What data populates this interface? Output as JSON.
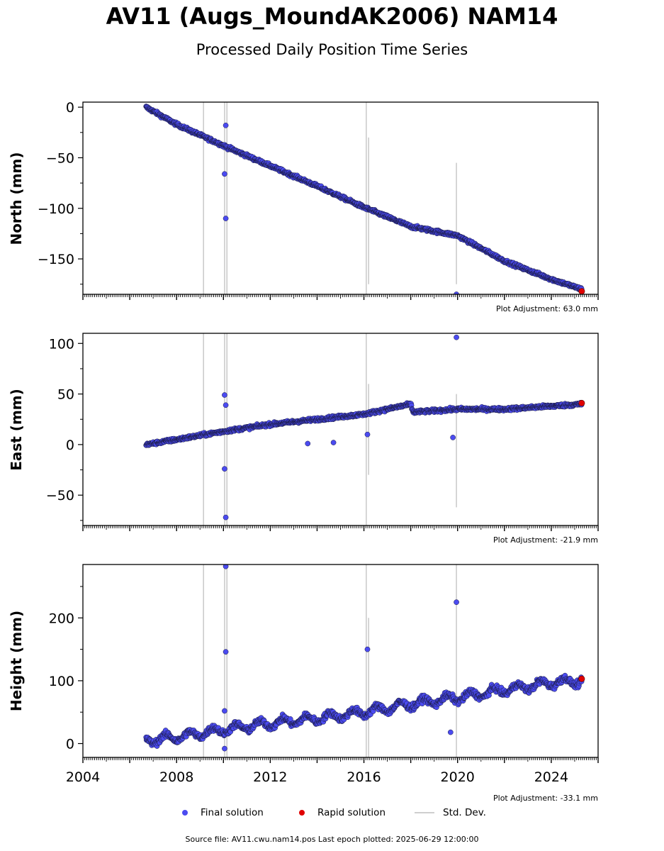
{
  "header": {
    "title": "AV11 (Augs_MoundAK2006) NAM14",
    "subtitle": "Processed Daily Position Time Series"
  },
  "colors": {
    "final": "#4b4bf0",
    "rapid": "#e00000",
    "stddev": "#c8c8c8",
    "outline": "#1a1a40"
  },
  "chart_data": [
    {
      "type": "scatter",
      "ylabel": "North (mm)",
      "ylim": [
        -185,
        5
      ],
      "xlim": [
        2004,
        2026
      ],
      "yticks": [
        0,
        -50,
        -100,
        -150
      ],
      "ytick_labels": [
        "0",
        "−50",
        "−100",
        "−150"
      ],
      "adjustment": "Plot Adjustment: 63.0 mm",
      "final_trend": {
        "x": [
          2006.7,
          2008,
          2010,
          2012,
          2014,
          2016,
          2018,
          2020,
          2022,
          2024,
          2025.3
        ],
        "y": [
          0,
          -17,
          -38,
          -58,
          -78,
          -99,
          -118,
          -127,
          -152,
          -170,
          -180
        ]
      },
      "outliers": [
        {
          "x": 2010.1,
          "y": -18
        },
        {
          "x": 2010.05,
          "y": -66
        },
        {
          "x": 2010.1,
          "y": -110
        },
        {
          "x": 2019.95,
          "y": -185
        }
      ],
      "rapid": [
        {
          "x": 2025.3,
          "y": -182
        }
      ],
      "stddev_spikes": [
        {
          "x": 2009.15,
          "y1": -185,
          "y2": 5
        },
        {
          "x": 2010.05,
          "y1": -185,
          "y2": 5
        },
        {
          "x": 2010.15,
          "y1": -185,
          "y2": 5
        },
        {
          "x": 2016.1,
          "y1": -185,
          "y2": 5
        },
        {
          "x": 2016.2,
          "y1": -175,
          "y2": -30
        },
        {
          "x": 2019.95,
          "y1": -175,
          "y2": -55
        }
      ]
    },
    {
      "type": "scatter",
      "ylabel": "East (mm)",
      "ylim": [
        -80,
        110
      ],
      "xlim": [
        2004,
        2026
      ],
      "yticks": [
        100,
        50,
        0,
        -50
      ],
      "ytick_labels": [
        "100",
        "50",
        "0",
        "−50"
      ],
      "adjustment": "Plot Adjustment: -21.9 mm",
      "final_trend": {
        "x": [
          2006.7,
          2008,
          2010,
          2012,
          2014,
          2016,
          2018,
          2018.1,
          2020,
          2022,
          2024,
          2025.3
        ],
        "y": [
          0,
          5,
          13,
          20,
          25,
          30,
          40,
          32,
          35,
          35,
          38,
          40
        ]
      },
      "outliers": [
        {
          "x": 2010.05,
          "y": 49
        },
        {
          "x": 2010.1,
          "y": 39
        },
        {
          "x": 2010.05,
          "y": -24
        },
        {
          "x": 2010.1,
          "y": -72
        },
        {
          "x": 2013.6,
          "y": 1
        },
        {
          "x": 2014.7,
          "y": 2
        },
        {
          "x": 2016.15,
          "y": 10
        },
        {
          "x": 2019.8,
          "y": 7
        },
        {
          "x": 2019.95,
          "y": 106
        }
      ],
      "rapid": [
        {
          "x": 2025.3,
          "y": 41
        }
      ],
      "stddev_spikes": [
        {
          "x": 2009.15,
          "y1": -80,
          "y2": 110
        },
        {
          "x": 2010.05,
          "y1": -80,
          "y2": 110
        },
        {
          "x": 2010.15,
          "y1": -80,
          "y2": 110
        },
        {
          "x": 2016.1,
          "y1": -80,
          "y2": 110
        },
        {
          "x": 2016.2,
          "y1": -30,
          "y2": 60
        },
        {
          "x": 2019.95,
          "y1": -62,
          "y2": 50
        }
      ]
    },
    {
      "type": "scatter",
      "ylabel": "Height (mm)",
      "ylim": [
        -22,
        285
      ],
      "xlim": [
        2004,
        2026
      ],
      "yticks": [
        200,
        100,
        0
      ],
      "ytick_labels": [
        "200",
        "100",
        "0"
      ],
      "xticks": [
        2004,
        2008,
        2012,
        2016,
        2020,
        2024
      ],
      "xtick_labels": [
        "2004",
        "2008",
        "2012",
        "2016",
        "2020",
        "2024"
      ],
      "adjustment": "Plot Adjustment: -33.1 mm",
      "final_trend": {
        "x": [
          2006.7,
          2008,
          2010,
          2012,
          2014,
          2016,
          2018,
          2020,
          2022,
          2024,
          2025.3
        ],
        "y": [
          5,
          10,
          22,
          32,
          40,
          50,
          63,
          73,
          85,
          97,
          100
        ]
      },
      "outliers": [
        {
          "x": 2010.1,
          "y": 282
        },
        {
          "x": 2010.1,
          "y": 146
        },
        {
          "x": 2010.05,
          "y": 52
        },
        {
          "x": 2010.05,
          "y": -8
        },
        {
          "x": 2016.15,
          "y": 150
        },
        {
          "x": 2019.95,
          "y": 225
        },
        {
          "x": 2019.7,
          "y": 18
        }
      ],
      "rapid": [
        {
          "x": 2025.3,
          "y": 103
        }
      ],
      "stddev_spikes": [
        {
          "x": 2009.15,
          "y1": -22,
          "y2": 285
        },
        {
          "x": 2010.05,
          "y1": -22,
          "y2": 285
        },
        {
          "x": 2010.15,
          "y1": -22,
          "y2": 285
        },
        {
          "x": 2016.1,
          "y1": -22,
          "y2": 285
        },
        {
          "x": 2016.2,
          "y1": -22,
          "y2": 200
        },
        {
          "x": 2019.95,
          "y1": -22,
          "y2": 285
        }
      ]
    }
  ],
  "legend": {
    "final": "Final solution",
    "rapid": "Rapid solution",
    "stddev": "Std. Dev."
  },
  "footer": "Source file: AV11.cwu.nam14.pos  Last epoch plotted: 2025-06-29 12:00:00"
}
